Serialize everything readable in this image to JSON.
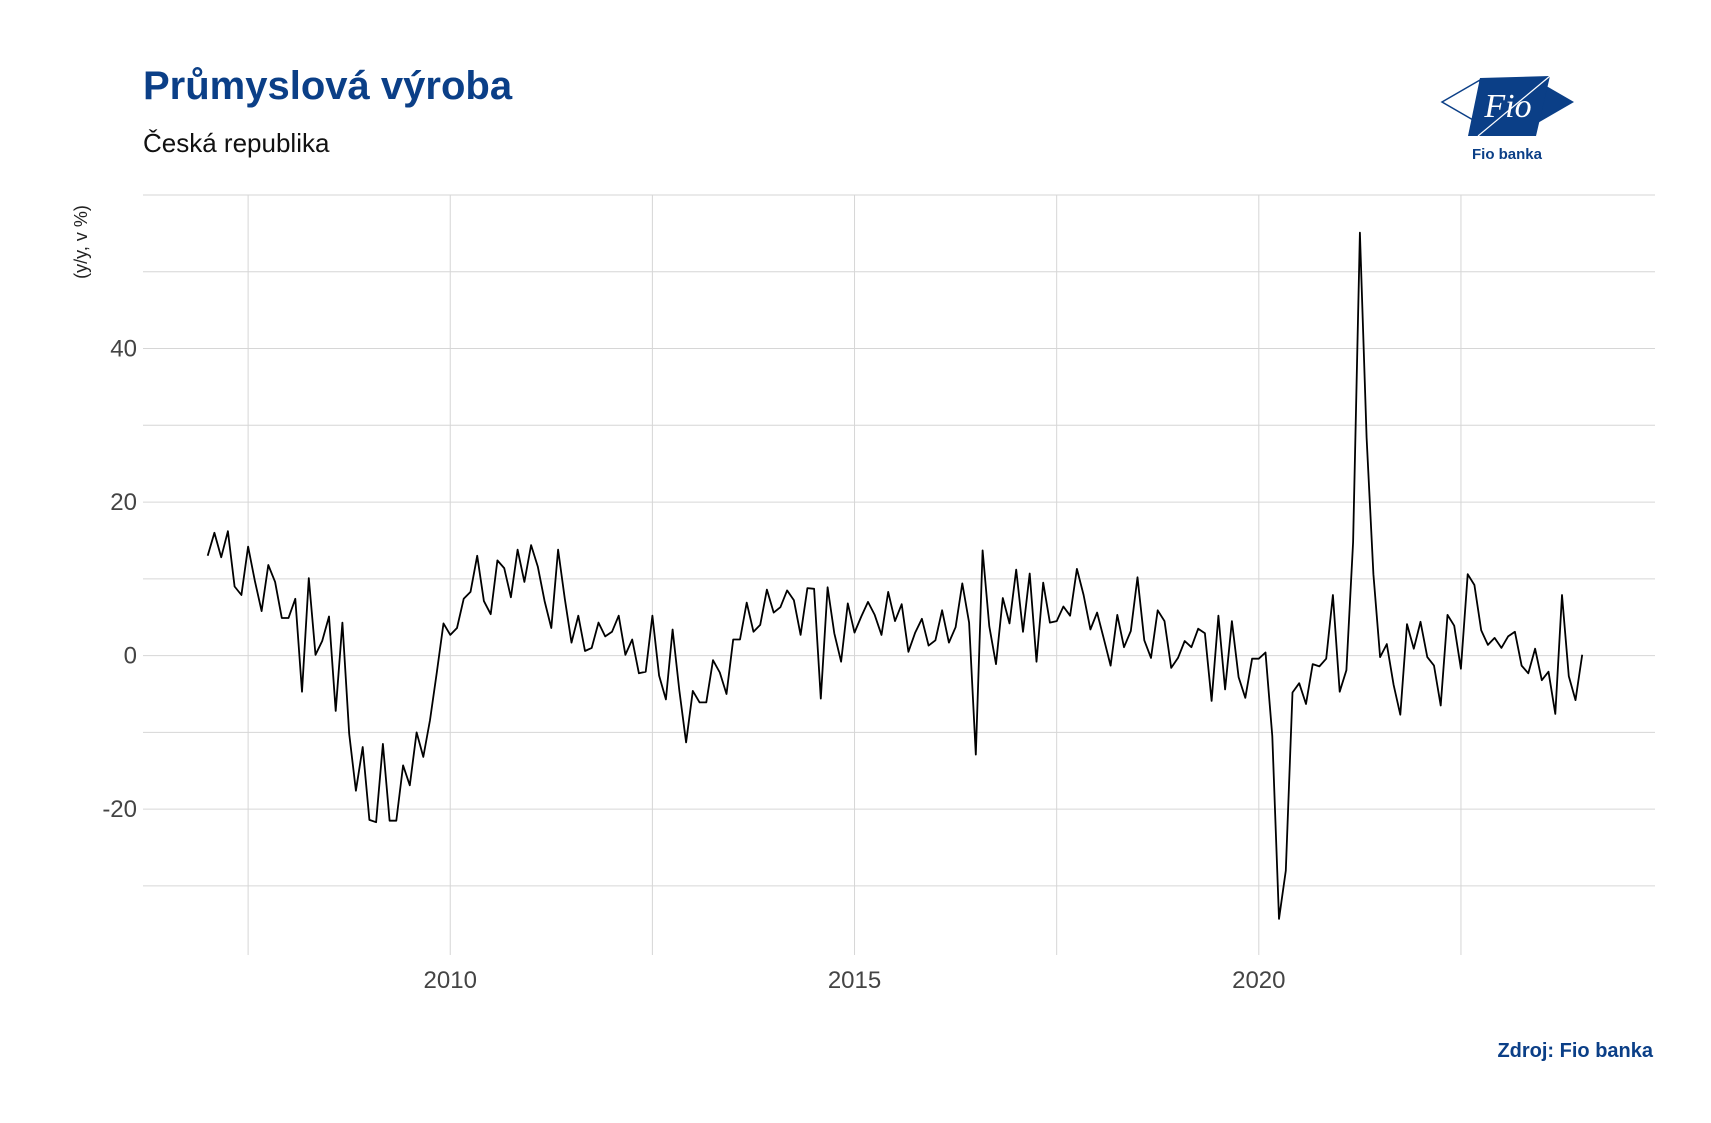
{
  "header": {
    "title": "Průmyslová výroba",
    "subtitle": "Česká republika"
  },
  "logo": {
    "text": "Fio",
    "caption": "Fio banka",
    "color": "#0b3f87"
  },
  "footer": {
    "source": "Zdroj: Fio banka"
  },
  "chart_data": {
    "type": "line",
    "title": "Průmyslová výroba",
    "subtitle": "Česká republika",
    "ylabel": "(y/y, v %)",
    "xlabel": "",
    "x_ticks": [
      2010,
      2015,
      2020
    ],
    "y_ticks": [
      -20,
      0,
      20,
      40
    ],
    "xlim": [
      2006.2,
      2024.9
    ],
    "ylim": [
      -39,
      60
    ],
    "grid": true,
    "line_color": "#000000",
    "series": [
      {
        "start": 2007.0,
        "step_months": 1,
        "values": [
          13,
          16,
          12.8,
          16.2,
          9,
          7.9,
          14.2,
          9.7,
          5.8,
          11.8,
          9.6,
          4.9,
          4.9,
          7.4,
          -4.7,
          10.1,
          0.1,
          1.9,
          5.1,
          -7.2,
          4.3,
          -10.2,
          -17.6,
          -11.9,
          -21.4,
          -21.7,
          -11.5,
          -21.5,
          -21.5,
          -14.3,
          -16.9,
          -10,
          -13.2,
          -8.4,
          -2.2,
          4.2,
          2.7,
          3.6,
          7.4,
          8.3,
          13,
          7.1,
          5.4,
          12.4,
          11.4,
          7.6,
          13.8,
          9.6,
          14.4,
          11.6,
          7.1,
          3.6,
          13.8,
          7.4,
          1.7,
          5.2,
          0.6,
          1,
          4.3,
          2.5,
          3.1,
          5.2,
          0.1,
          2.1,
          -2.3,
          -2.1,
          5.2,
          -2.6,
          -5.7,
          3.4,
          -4.5,
          -11.3,
          -4.6,
          -6.1,
          -6.1,
          -0.6,
          -2.2,
          -5,
          2.1,
          2.1,
          6.9,
          3.1,
          4,
          8.6,
          5.6,
          6.3,
          8.5,
          7.2,
          2.7,
          8.8,
          8.7,
          -5.6,
          8.9,
          2.9,
          -0.8,
          6.8,
          3,
          5.1,
          7,
          5.3,
          2.7,
          8.3,
          4.5,
          6.7,
          0.5,
          3,
          4.8,
          1.3,
          2,
          5.9,
          1.7,
          3.7,
          9.4,
          4.3,
          -12.9,
          13.7,
          3.8,
          -1.1,
          7.5,
          4.2,
          11.2,
          3.1,
          10.7,
          -0.8,
          9.5,
          4.3,
          4.5,
          6.4,
          5.2,
          11.3,
          7.9,
          3.4,
          5.6,
          2.2,
          -1.3,
          5.3,
          1.1,
          3.2,
          10.2,
          2,
          -0.3,
          5.9,
          4.5,
          -1.6,
          -0.3,
          1.9,
          1.1,
          3.5,
          2.9,
          -5.9,
          5.2,
          -4.4,
          4.5,
          -2.8,
          -5.5,
          -0.4,
          -0.4,
          0.4,
          -10.5,
          -34.3,
          -28,
          -4.8,
          -3.6,
          -6.3,
          -1.1,
          -1.4,
          -0.4,
          7.9,
          -4.7,
          -1.9,
          14.8,
          55.1,
          28.4,
          10.6,
          -0.2,
          1.5,
          -3.8,
          -7.7,
          4.1,
          0.9,
          4.4,
          -0.2,
          -1.3,
          -6.5,
          5.3,
          3.9,
          -1.7,
          10.6,
          9.2,
          3.3,
          1.4,
          2.3,
          1,
          2.5,
          3.1,
          -1.3,
          -2.3,
          0.9,
          -3.2,
          -2.1,
          -7.6,
          7.9,
          -2.7,
          -5.8,
          0.1
        ]
      }
    ]
  }
}
